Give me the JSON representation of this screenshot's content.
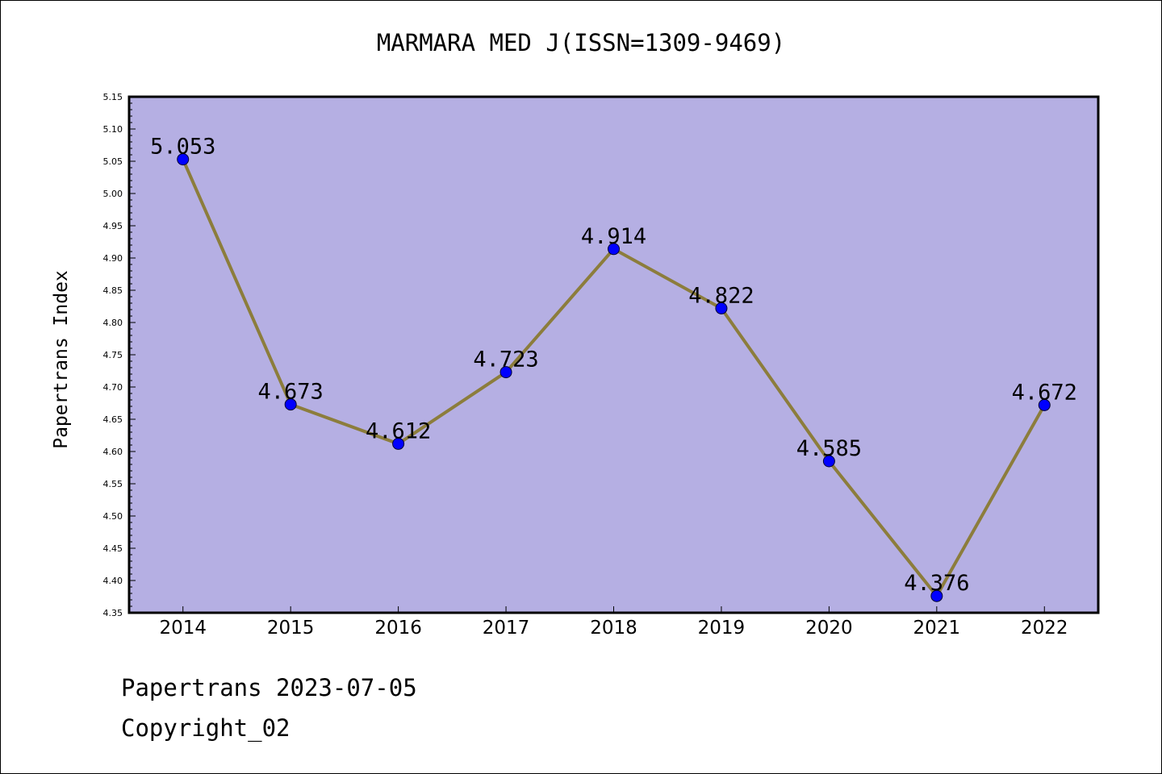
{
  "chart_data": {
    "type": "line",
    "title": "MARMARA MED J(ISSN=1309-9469)",
    "ylabel": "Papertrans Index",
    "xlabel": "",
    "categories": [
      "2014",
      "2015",
      "2016",
      "2017",
      "2018",
      "2019",
      "2020",
      "2021",
      "2022"
    ],
    "series": [
      {
        "values": [
          5.053,
          4.673,
          4.612,
          4.723,
          4.914,
          4.822,
          4.585,
          4.376,
          4.672
        ],
        "labels": [
          "5.053",
          "4.673",
          "4.612",
          "4.723",
          "4.914",
          "4.822",
          "4.585",
          "4.376",
          "4.672"
        ]
      }
    ],
    "ylim": [
      4.35,
      5.15
    ],
    "yticks": [
      "4.35",
      "4.40",
      "4.45",
      "4.50",
      "4.55",
      "4.60",
      "4.65",
      "4.70",
      "4.75",
      "4.80",
      "4.85",
      "4.90",
      "4.95",
      "5.00",
      "5.05",
      "5.10",
      "5.15"
    ],
    "grid": false,
    "legend": "none",
    "colors": {
      "plot_background": "#b5afe3",
      "line": "#8c7d3c",
      "marker": "#0000ff",
      "axis": "#000000"
    }
  },
  "footer": {
    "line1": "Papertrans 2023-07-05",
    "line2": "Copyright_02"
  }
}
